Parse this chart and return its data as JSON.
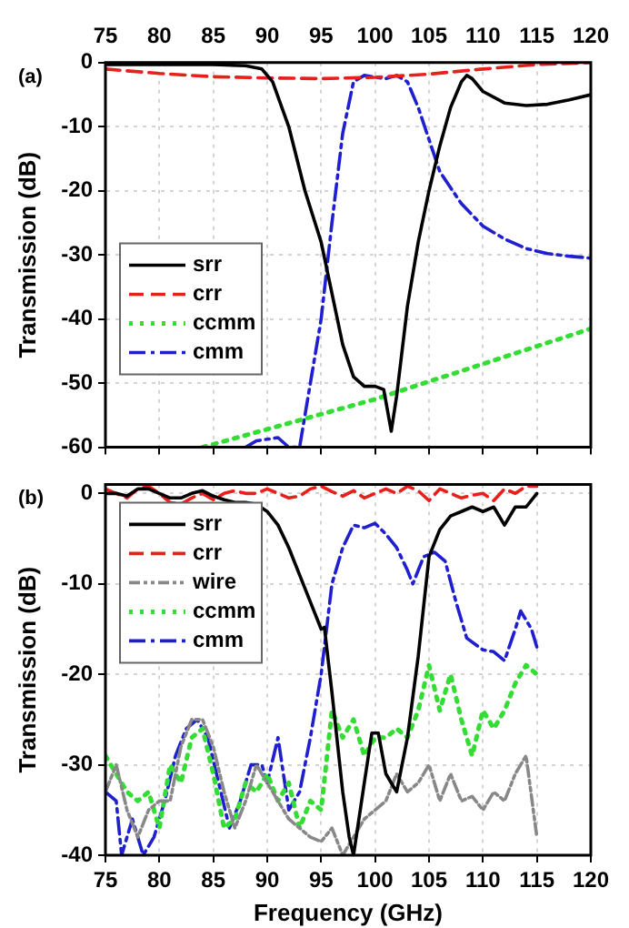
{
  "chart_data": [
    {
      "type": "line",
      "ylabel": "Transmission (dB)",
      "annotations": [
        "(a)"
      ],
      "xlim": [
        75,
        120
      ],
      "tick_labels": "y",
      "x2lim": [
        75,
        120
      ],
      "x2ticks": [
        75,
        80,
        85,
        90,
        95,
        100,
        105,
        110,
        115,
        120
      ],
      "ylim": [
        -60,
        0
      ],
      "yticks": [
        -60,
        -50,
        -40,
        -30,
        -20,
        -10,
        0
      ],
      "grid": true,
      "legend": "left",
      "marker": "none",
      "series": [
        {
          "name": "srr",
          "color": "#000000",
          "line_style": "solid",
          "x": [
            75,
            85,
            88,
            89.5,
            90.5,
            92,
            93.5,
            95,
            96,
            97,
            98,
            99,
            100,
            100.8,
            101.5,
            102,
            103,
            104,
            105,
            106,
            107,
            108,
            108.5,
            109,
            110,
            112,
            114,
            116,
            118,
            120
          ],
          "values": [
            -0.3,
            -0.3,
            -0.5,
            -1,
            -3,
            -10,
            -20,
            -28,
            -36,
            -44,
            -49,
            -50.5,
            -50.5,
            -51,
            -57.5,
            -52,
            -38,
            -28,
            -20,
            -13,
            -7,
            -3,
            -2,
            -2.5,
            -4.5,
            -6.3,
            -6.7,
            -6.5,
            -5.8,
            -5
          ]
        },
        {
          "name": "crr",
          "color": "#e8201c",
          "line_style": "dashed",
          "x": [
            75,
            80,
            85,
            90,
            95,
            100,
            105,
            110,
            115,
            120
          ],
          "values": [
            -1,
            -1.7,
            -2.2,
            -2.4,
            -2.5,
            -2.3,
            -1.8,
            -1,
            -0.3,
            0
          ]
        },
        {
          "name": "ccmm",
          "color": "#33dd33",
          "line_style": "dotted",
          "x": [
            84,
            100,
            120
          ],
          "values": [
            -60,
            -52.5,
            -41.5
          ]
        },
        {
          "name": "cmm",
          "color": "#1f1fd0",
          "line_style": "dashdot",
          "x": [
            88,
            89,
            91,
            92,
            93,
            95,
            96,
            97,
            98,
            99,
            100,
            101,
            102,
            103,
            104,
            105,
            106,
            108,
            110,
            112,
            114,
            116,
            118,
            120
          ],
          "values": [
            -60,
            -59,
            -58.5,
            -60,
            -60,
            -40,
            -25,
            -11,
            -3,
            -2,
            -2.3,
            -2.5,
            -2,
            -3,
            -7,
            -12,
            -17,
            -22,
            -25.5,
            -27.5,
            -29,
            -29.8,
            -30.2,
            -30.5
          ]
        }
      ]
    },
    {
      "type": "line",
      "xlabel": "Frequency (GHz)",
      "ylabel": "Transmission (dB)",
      "annotations": [
        "(b)"
      ],
      "xlim": [
        75,
        120
      ],
      "xticks": [
        75,
        80,
        85,
        90,
        95,
        100,
        105,
        110,
        115,
        120
      ],
      "ylim": [
        -40,
        1
      ],
      "yticks": [
        -40,
        -30,
        -20,
        -10,
        0
      ],
      "grid": true,
      "legend": "top left",
      "marker": "none",
      "series": [
        {
          "name": "srr",
          "color": "#000000",
          "line_style": "solid",
          "x": [
            75,
            76,
            77,
            78,
            79,
            80,
            81,
            82,
            83,
            84,
            85,
            86,
            87,
            88,
            89,
            90,
            91,
            92,
            93,
            94,
            95,
            95.3,
            96,
            97,
            97.6,
            98,
            99,
            99.7,
            100.3,
            101,
            101.5,
            102,
            103,
            104,
            105,
            106,
            107,
            108,
            109,
            110,
            111,
            112,
            113,
            114,
            115
          ],
          "values": [
            0,
            0,
            -0.3,
            0.5,
            0.5,
            0,
            -0.5,
            -0.5,
            0,
            0.3,
            -0.3,
            -0.7,
            -1,
            -1,
            -1.2,
            -2,
            -3.5,
            -6,
            -9,
            -12,
            -15,
            -14.8,
            -22,
            -33,
            -38,
            -40,
            -32,
            -26.5,
            -26.5,
            -31,
            -32,
            -33,
            -27,
            -18,
            -7,
            -4,
            -2.5,
            -2,
            -1.5,
            -2,
            -1.5,
            -3.5,
            -1.5,
            -1.5,
            0
          ]
        },
        {
          "name": "crr",
          "color": "#e8201c",
          "line_style": "dashed",
          "x": [
            75,
            76,
            77,
            78,
            79,
            80,
            81,
            82,
            83,
            84,
            85,
            86,
            87,
            88,
            89,
            90,
            91,
            92,
            93,
            94,
            95,
            96,
            97,
            98,
            99,
            100,
            101,
            102,
            103,
            104,
            105,
            106,
            107,
            108,
            109,
            110,
            111,
            112,
            113,
            114,
            115
          ],
          "values": [
            0.5,
            0,
            -0.5,
            0.5,
            0.8,
            0,
            -1,
            -1.2,
            -0.5,
            0,
            -0.7,
            0,
            0.3,
            0,
            0,
            0.5,
            0,
            -0.5,
            -0.3,
            0.5,
            0.8,
            0.2,
            -0.3,
            0.3,
            -0.5,
            0,
            0.5,
            0,
            0.8,
            0.3,
            -0.8,
            0.5,
            0,
            -0.5,
            -0.2,
            0,
            -0.8,
            0.5,
            0,
            0.8,
            0.8
          ]
        },
        {
          "name": "wire",
          "color": "#888888",
          "line_style": "dashdotdot",
          "x": [
            75,
            76,
            77,
            78,
            79,
            80,
            81,
            82,
            83,
            84,
            85,
            86,
            87,
            88,
            89,
            90,
            91,
            92,
            93,
            94,
            95,
            96,
            97,
            98,
            99,
            100,
            101,
            102,
            103,
            104,
            105,
            106,
            107,
            108,
            109,
            110,
            111,
            112,
            113,
            114,
            115
          ],
          "values": [
            -33,
            -30,
            -35,
            -38,
            -35,
            -34,
            -34,
            -28,
            -25,
            -25,
            -28,
            -33,
            -37,
            -34,
            -30,
            -32,
            -34,
            -36,
            -37,
            -38,
            -38.5,
            -37,
            -40,
            -38,
            -36,
            -35,
            -34,
            -31,
            -33,
            -32,
            -30,
            -34,
            -31,
            -34,
            -33.5,
            -35,
            -33,
            -34,
            -31,
            -29,
            -38
          ]
        },
        {
          "name": "ccmm",
          "color": "#33dd33",
          "line_style": "dotted",
          "x": [
            75,
            76,
            77,
            78,
            79,
            80,
            81,
            82,
            83,
            84,
            85,
            86,
            87,
            88,
            89,
            90,
            91,
            92,
            93,
            94,
            95,
            96,
            97,
            98,
            99,
            100,
            101,
            102,
            103,
            104,
            105,
            106,
            107,
            108,
            109,
            110,
            111,
            112,
            113,
            114,
            115
          ],
          "values": [
            -29,
            -31,
            -33,
            -34,
            -33,
            -37,
            -30,
            -32,
            -27,
            -26,
            -31,
            -37,
            -36,
            -32,
            -33,
            -31,
            -34,
            -32,
            -37,
            -34,
            -35,
            -24,
            -27,
            -25,
            -29,
            -27,
            -27,
            -26,
            -27,
            -24,
            -19,
            -24,
            -20,
            -25,
            -29,
            -24,
            -26,
            -24,
            -21,
            -19,
            -20
          ]
        },
        {
          "name": "cmm",
          "color": "#1f1fd0",
          "line_style": "dashdot",
          "x": [
            75,
            76,
            76.5,
            77.5,
            78.5,
            79.5,
            80.5,
            81.5,
            82.5,
            83.5,
            84.5,
            85.5,
            86.5,
            87.5,
            88.5,
            89.5,
            90,
            91,
            92,
            93,
            94,
            95,
            96,
            97,
            98,
            99,
            100,
            101,
            102,
            103,
            103.5,
            104.5,
            105.5,
            106.5,
            107.5,
            108.5,
            110,
            111,
            112,
            113,
            113.5,
            114.5,
            115
          ],
          "values": [
            -33,
            -34,
            -40,
            -36,
            -40,
            -38,
            -34,
            -29,
            -26,
            -25,
            -27,
            -32,
            -37,
            -34,
            -30,
            -30,
            -32,
            -27,
            -35,
            -33,
            -27,
            -20,
            -10,
            -6,
            -3.5,
            -3.8,
            -3.3,
            -4.5,
            -6,
            -8.5,
            -10,
            -7,
            -6.5,
            -7.5,
            -12,
            -16,
            -17.3,
            -17.5,
            -18.5,
            -15,
            -13,
            -15,
            -17
          ]
        }
      ]
    }
  ]
}
